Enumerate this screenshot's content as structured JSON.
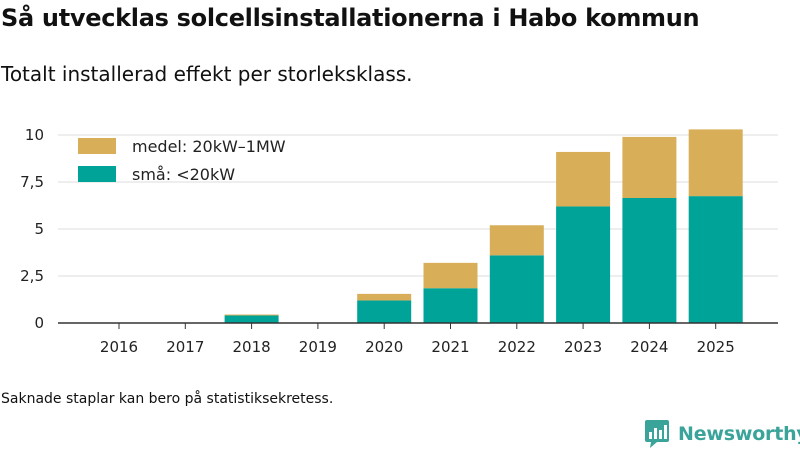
{
  "title": "Så utvecklas solcellsinstallationerna i Habo kommun",
  "subtitle": "Totalt installerad effekt per storleksklass.",
  "footnote": "Saknade staplar kan bero på statistiksekretess.",
  "brand": "Newsworthy",
  "colors": {
    "small": "#00a398",
    "medium": "#d8ae58",
    "grid": "#dddddd",
    "axis": "#333333",
    "brand": "#3aa39a"
  },
  "chart_data": {
    "type": "bar",
    "stacked": true,
    "categories": [
      "2016",
      "2017",
      "2018",
      "2019",
      "2020",
      "2021",
      "2022",
      "2023",
      "2024",
      "2025"
    ],
    "series": [
      {
        "name": "små: <20kW",
        "values": [
          0,
          0,
          0.4,
          0,
          1.2,
          1.85,
          3.6,
          6.2,
          6.65,
          6.75
        ]
      },
      {
        "name": "medel: 20kW–1MW",
        "values": [
          0,
          0,
          0.05,
          0,
          0.35,
          1.35,
          1.6,
          2.9,
          3.25,
          3.55
        ]
      }
    ],
    "y_ticks": [
      0,
      2.5,
      5,
      7.5,
      10
    ],
    "y_tick_labels": [
      "0",
      "2,5",
      "5",
      "7,5",
      "10"
    ],
    "ylim": [
      0,
      10.8
    ],
    "legend": [
      "medel: 20kW–1MW",
      "små: <20kW"
    ],
    "legend_position": "top-left",
    "grid": true
  }
}
